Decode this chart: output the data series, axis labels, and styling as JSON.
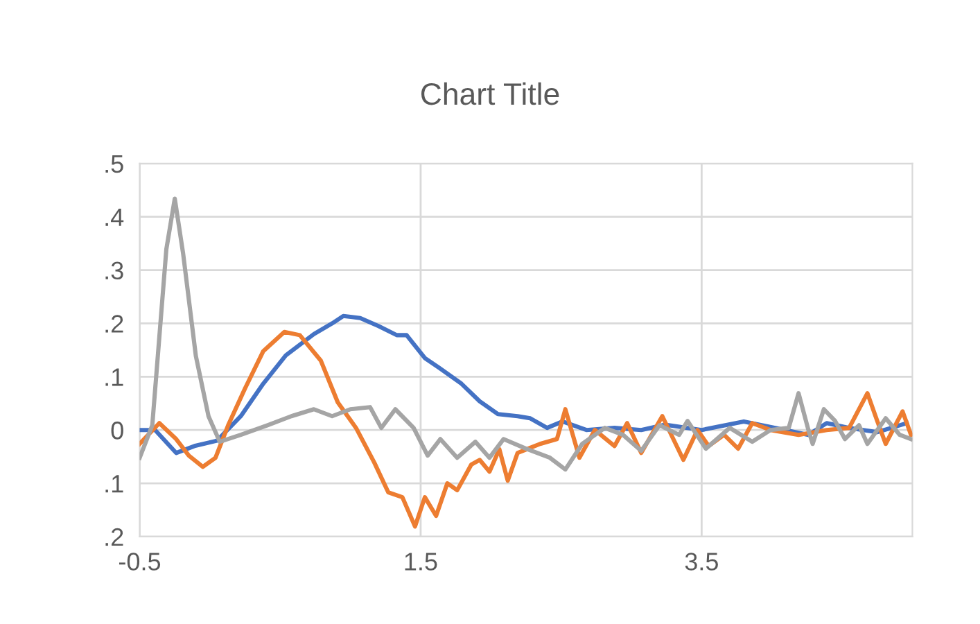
{
  "chart_data": {
    "type": "line",
    "title": "Chart Title",
    "xlim": [
      -0.5,
      5.0
    ],
    "xticks": [
      -0.5,
      1.5,
      3.5
    ],
    "ylim": [
      -0.2,
      0.5
    ],
    "yticks": [
      {
        "value": -0.2,
        "label": ".2"
      },
      {
        "value": -0.1,
        "label": ".1"
      },
      0,
      {
        "value": 0.1,
        "label": ".1"
      },
      {
        "value": 0.2,
        "label": ".2"
      },
      {
        "value": 0.3,
        "label": ".3"
      },
      {
        "value": 0.4,
        "label": ".4"
      },
      {
        "value": 0.5,
        "label": ".5"
      }
    ],
    "grid": true,
    "line_style": "solid",
    "marker": "none",
    "series": [
      {
        "color": "#4472c4",
        "x": [
          -0.5,
          -0.39,
          -0.24,
          -0.11,
          0.05,
          0.22,
          0.38,
          0.54,
          0.74,
          0.87,
          0.95,
          1.07,
          1.2,
          1.33,
          1.4,
          1.53,
          1.63,
          1.79,
          1.92,
          2.05,
          2.19,
          2.28,
          2.4,
          2.51,
          2.68,
          2.88,
          3.07,
          3.24,
          3.5,
          3.8,
          4.06,
          4.26,
          4.39,
          4.55,
          4.75,
          4.85,
          4.96
        ],
        "values": [
          0.0,
          0.0,
          -0.043,
          -0.03,
          -0.02,
          0.026,
          0.087,
          0.14,
          0.18,
          0.2,
          0.214,
          0.21,
          0.195,
          0.178,
          0.178,
          0.135,
          0.117,
          0.087,
          0.054,
          0.03,
          0.026,
          0.022,
          0.004,
          0.016,
          0.0,
          0.004,
          0.0,
          0.01,
          0.0,
          0.016,
          0.002,
          -0.009,
          0.013,
          0.004,
          -0.004,
          0.004,
          0.013
        ]
      },
      {
        "color": "#ed7d31",
        "x": [
          -0.5,
          -0.36,
          -0.24,
          -0.15,
          -0.05,
          0.04,
          0.13,
          0.25,
          0.38,
          0.53,
          0.64,
          0.79,
          0.91,
          1.04,
          1.17,
          1.27,
          1.37,
          1.46,
          1.53,
          1.61,
          1.69,
          1.76,
          1.86,
          1.92,
          1.99,
          2.06,
          2.12,
          2.19,
          2.35,
          2.47,
          2.53,
          2.63,
          2.74,
          2.88,
          2.97,
          3.07,
          3.22,
          3.37,
          3.47,
          3.55,
          3.66,
          3.76,
          3.86,
          3.99,
          4.19,
          4.39,
          4.55,
          4.68,
          4.75,
          4.81,
          4.93,
          4.99
        ],
        "values": [
          -0.026,
          0.013,
          -0.017,
          -0.048,
          -0.069,
          -0.052,
          0.009,
          0.078,
          0.148,
          0.184,
          0.178,
          0.13,
          0.052,
          0.004,
          -0.061,
          -0.117,
          -0.126,
          -0.181,
          -0.126,
          -0.161,
          -0.1,
          -0.113,
          -0.065,
          -0.056,
          -0.078,
          -0.036,
          -0.095,
          -0.043,
          -0.026,
          -0.017,
          0.039,
          -0.052,
          0.0,
          -0.03,
          0.013,
          -0.043,
          0.026,
          -0.056,
          0.0,
          -0.03,
          -0.009,
          -0.035,
          0.013,
          0.0,
          -0.009,
          0.0,
          0.004,
          0.069,
          0.017,
          -0.026,
          0.035,
          -0.009
        ]
      },
      {
        "color": "#a5a5a5",
        "x": [
          -0.5,
          -0.41,
          -0.31,
          -0.25,
          -0.19,
          -0.1,
          -0.01,
          0.07,
          0.22,
          0.41,
          0.58,
          0.74,
          0.87,
          1.0,
          1.14,
          1.22,
          1.32,
          1.45,
          1.55,
          1.64,
          1.76,
          1.89,
          1.99,
          2.09,
          2.25,
          2.42,
          2.53,
          2.65,
          2.81,
          2.94,
          3.07,
          3.2,
          3.34,
          3.4,
          3.53,
          3.7,
          3.86,
          3.99,
          4.12,
          4.19,
          4.26,
          4.29,
          4.37,
          4.45,
          4.52,
          4.62,
          4.68,
          4.81,
          4.91,
          4.99
        ],
        "values": [
          -0.052,
          0.009,
          0.339,
          0.434,
          0.33,
          0.139,
          0.026,
          -0.022,
          -0.009,
          0.009,
          0.026,
          0.039,
          0.026,
          0.039,
          0.043,
          0.004,
          0.039,
          0.004,
          -0.048,
          -0.017,
          -0.052,
          -0.022,
          -0.052,
          -0.017,
          -0.035,
          -0.052,
          -0.074,
          -0.026,
          0.004,
          -0.009,
          -0.039,
          0.009,
          -0.009,
          0.017,
          -0.035,
          0.004,
          -0.022,
          0.0,
          0.004,
          0.069,
          0.0,
          -0.026,
          0.039,
          0.017,
          -0.017,
          0.009,
          -0.026,
          0.022,
          -0.009,
          -0.017
        ]
      }
    ]
  }
}
